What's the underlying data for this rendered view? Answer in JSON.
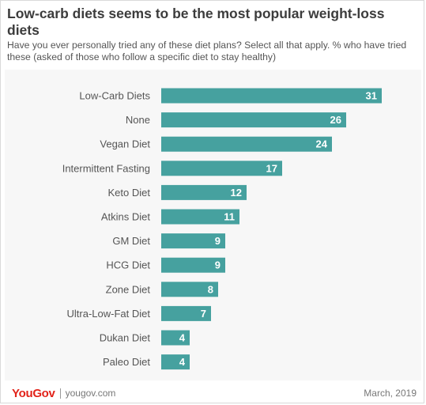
{
  "header": {
    "title": "Low-carb diets seems to be the most popular weight-loss diets",
    "subtitle": "Have you ever personally tried any of these diet plans? Select all that apply. % who have tried these (asked of those who follow a specific diet to stay healthy)"
  },
  "footer": {
    "logo": "YouGov",
    "url": "yougov.com",
    "date": "March,  2019"
  },
  "colors": {
    "bar": "#46a19f",
    "bar_label": "#ffffff",
    "category_label": "#555555",
    "logo": "#e2231a"
  },
  "chart_data": {
    "type": "bar",
    "orientation": "horizontal",
    "categories": [
      "Low-Carb Diets",
      "None",
      "Vegan Diet",
      "Intermittent Fasting",
      "Keto Diet",
      "Atkins Diet",
      "GM Diet",
      "HCG Diet",
      "Zone Diet",
      "Ultra-Low-Fat Diet",
      "Dukan Diet",
      "Paleo Diet"
    ],
    "values": [
      31,
      26,
      24,
      17,
      12,
      11,
      9,
      9,
      8,
      7,
      4,
      4
    ],
    "xlim": [
      0,
      31
    ],
    "grid": false,
    "legend": "none"
  }
}
